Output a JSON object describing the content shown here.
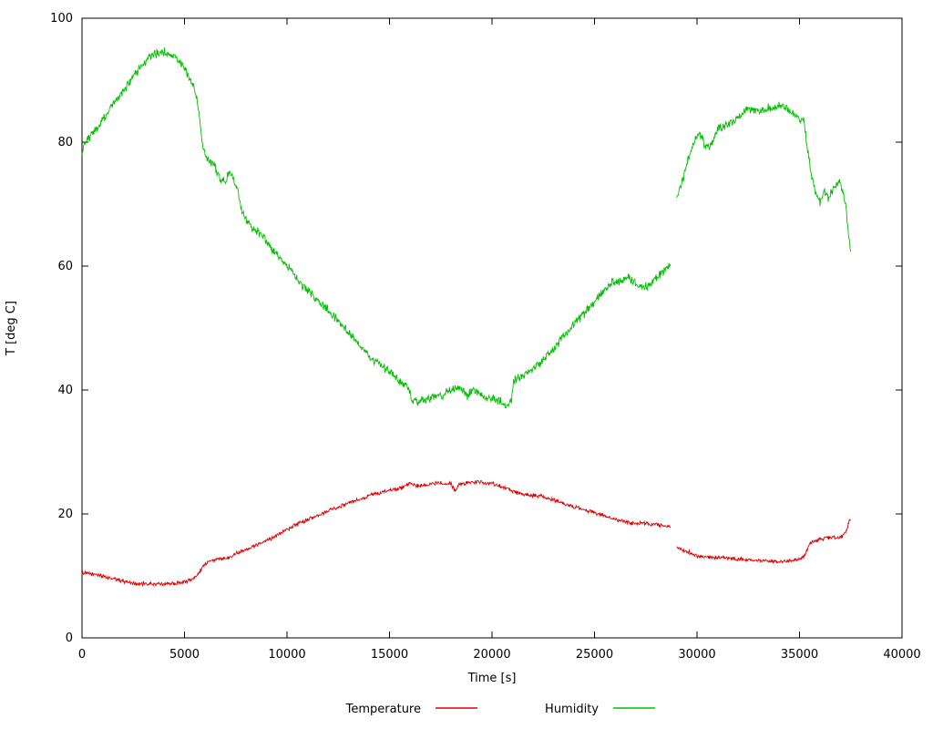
{
  "chart_data": {
    "type": "line",
    "title": "",
    "xlabel": "Time [s]",
    "ylabel": "T [deg C]",
    "xlim": [
      0,
      40000
    ],
    "ylim": [
      0,
      100
    ],
    "xticks": [
      0,
      5000,
      10000,
      15000,
      20000,
      25000,
      30000,
      35000,
      40000
    ],
    "yticks": [
      0,
      20,
      40,
      60,
      80,
      100
    ],
    "grid": false,
    "legend_position": "bottom-center",
    "background": "#ffffff",
    "frame_color": "#000000",
    "series": [
      {
        "name": "Temperature",
        "color": "#e00000",
        "noise_amplitude": 0.4,
        "segments": [
          [
            [
              0,
              10.5
            ],
            [
              400,
              10.3
            ],
            [
              800,
              10.2
            ],
            [
              1200,
              9.8
            ],
            [
              1600,
              9.5
            ],
            [
              2000,
              9.2
            ],
            [
              2400,
              8.9
            ],
            [
              2800,
              8.7
            ],
            [
              3400,
              8.7
            ],
            [
              4000,
              8.7
            ],
            [
              4600,
              8.8
            ],
            [
              5000,
              9.0
            ],
            [
              5400,
              9.5
            ],
            [
              5700,
              10.5
            ],
            [
              5900,
              11.5
            ],
            [
              6100,
              12.2
            ],
            [
              6400,
              12.5
            ],
            [
              6800,
              12.8
            ],
            [
              7200,
              13.0
            ],
            [
              7600,
              13.8
            ],
            [
              8000,
              14.3
            ],
            [
              8400,
              14.8
            ],
            [
              8800,
              15.5
            ],
            [
              9200,
              16.0
            ],
            [
              9600,
              16.8
            ],
            [
              10000,
              17.5
            ],
            [
              10400,
              18.2
            ],
            [
              10800,
              18.8
            ],
            [
              11200,
              19.3
            ],
            [
              11600,
              19.8
            ],
            [
              12000,
              20.5
            ],
            [
              12400,
              21.0
            ],
            [
              12800,
              21.5
            ],
            [
              13200,
              22.0
            ],
            [
              13600,
              22.5
            ],
            [
              14000,
              23.0
            ],
            [
              14400,
              23.3
            ],
            [
              14800,
              23.6
            ],
            [
              15200,
              23.9
            ],
            [
              15600,
              24.2
            ],
            [
              16000,
              24.8
            ],
            [
              16400,
              24.5
            ],
            [
              16800,
              24.7
            ],
            [
              17200,
              24.9
            ],
            [
              17600,
              25.0
            ],
            [
              18000,
              24.8
            ],
            [
              18200,
              23.8
            ],
            [
              18400,
              24.8
            ],
            [
              18800,
              25.0
            ],
            [
              19200,
              25.2
            ],
            [
              19600,
              25.0
            ],
            [
              20000,
              24.9
            ],
            [
              20400,
              24.5
            ],
            [
              20800,
              24.0
            ],
            [
              21200,
              23.4
            ],
            [
              21600,
              23.1
            ],
            [
              22000,
              23.0
            ],
            [
              22400,
              22.9
            ],
            [
              22800,
              22.4
            ],
            [
              23200,
              22.0
            ],
            [
              23600,
              21.6
            ],
            [
              24000,
              21.2
            ],
            [
              24400,
              20.8
            ],
            [
              24800,
              20.4
            ],
            [
              25200,
              20.0
            ],
            [
              25600,
              19.5
            ],
            [
              26000,
              19.2
            ],
            [
              26400,
              18.8
            ],
            [
              26800,
              18.5
            ],
            [
              27200,
              18.5
            ],
            [
              27600,
              18.4
            ],
            [
              28000,
              18.3
            ],
            [
              28400,
              18.1
            ],
            [
              28700,
              17.9
            ]
          ],
          [
            [
              29000,
              14.6
            ],
            [
              29300,
              14.2
            ],
            [
              29600,
              13.8
            ],
            [
              30000,
              13.2
            ],
            [
              30400,
              13.0
            ],
            [
              30800,
              13.0
            ],
            [
              31200,
              12.9
            ],
            [
              31600,
              12.8
            ],
            [
              32000,
              12.7
            ],
            [
              32400,
              12.6
            ],
            [
              32800,
              12.5
            ],
            [
              33200,
              12.5
            ],
            [
              33600,
              12.4
            ],
            [
              34000,
              12.3
            ],
            [
              34400,
              12.4
            ],
            [
              34800,
              12.6
            ],
            [
              35100,
              12.8
            ],
            [
              35300,
              13.5
            ],
            [
              35500,
              15.3
            ],
            [
              35700,
              15.6
            ],
            [
              36000,
              15.9
            ],
            [
              36300,
              16.1
            ],
            [
              36600,
              16.2
            ],
            [
              36900,
              16.1
            ],
            [
              37100,
              16.5
            ],
            [
              37250,
              17.0
            ],
            [
              37350,
              18.0
            ],
            [
              37450,
              19.0
            ],
            [
              37500,
              19.3
            ]
          ]
        ]
      },
      {
        "name": "Humidity",
        "color": "#00c000",
        "noise_amplitude": 0.9,
        "segments": [
          [
            [
              0,
              78
            ],
            [
              150,
              80
            ],
            [
              400,
              81
            ],
            [
              700,
              82
            ],
            [
              1000,
              83.5
            ],
            [
              1300,
              85
            ],
            [
              1600,
              86.5
            ],
            [
              2000,
              88
            ],
            [
              2400,
              90
            ],
            [
              2800,
              92
            ],
            [
              3200,
              93.5
            ],
            [
              3600,
              94.3
            ],
            [
              4000,
              94.5
            ],
            [
              4300,
              94.3
            ],
            [
              4600,
              93.5
            ],
            [
              4900,
              92.5
            ],
            [
              5200,
              90.5
            ],
            [
              5500,
              88.5
            ],
            [
              5700,
              85
            ],
            [
              5850,
              80
            ],
            [
              6000,
              78
            ],
            [
              6200,
              77
            ],
            [
              6400,
              76.5
            ],
            [
              6600,
              75
            ],
            [
              6800,
              74
            ],
            [
              7000,
              73.5
            ],
            [
              7200,
              75.5
            ],
            [
              7400,
              74
            ],
            [
              7600,
              72
            ],
            [
              7800,
              69
            ],
            [
              8000,
              67.5
            ],
            [
              8300,
              66
            ],
            [
              8600,
              65.5
            ],
            [
              8900,
              64.5
            ],
            [
              9200,
              63
            ],
            [
              9500,
              62
            ],
            [
              9800,
              61
            ],
            [
              10100,
              59.5
            ],
            [
              10400,
              58.5
            ],
            [
              10700,
              57
            ],
            [
              11000,
              56
            ],
            [
              11300,
              55
            ],
            [
              11600,
              54
            ],
            [
              12000,
              53
            ],
            [
              12400,
              51.5
            ],
            [
              12800,
              50
            ],
            [
              13200,
              48.5
            ],
            [
              13600,
              47
            ],
            [
              14000,
              45.5
            ],
            [
              14400,
              44.5
            ],
            [
              14800,
              43.5
            ],
            [
              15200,
              42.5
            ],
            [
              15600,
              41
            ],
            [
              15900,
              40.5
            ],
            [
              16100,
              38.5
            ],
            [
              16400,
              38
            ],
            [
              16700,
              38.5
            ],
            [
              17000,
              38.5
            ],
            [
              17300,
              39.5
            ],
            [
              17600,
              39
            ],
            [
              17900,
              40
            ],
            [
              18200,
              40.5
            ],
            [
              18500,
              40
            ],
            [
              18800,
              39
            ],
            [
              19100,
              40
            ],
            [
              19400,
              39.5
            ],
            [
              19700,
              38.5
            ],
            [
              20000,
              39
            ],
            [
              20300,
              38.5
            ],
            [
              20600,
              38
            ],
            [
              20800,
              37
            ],
            [
              20950,
              38
            ],
            [
              21050,
              41.5
            ],
            [
              21300,
              42
            ],
            [
              21600,
              42.5
            ],
            [
              22000,
              43.5
            ],
            [
              22400,
              44.5
            ],
            [
              22800,
              46
            ],
            [
              23200,
              47.5
            ],
            [
              23600,
              49
            ],
            [
              24000,
              50.5
            ],
            [
              24400,
              52
            ],
            [
              24800,
              53.5
            ],
            [
              25200,
              55
            ],
            [
              25600,
              56.5
            ],
            [
              25900,
              57.5
            ],
            [
              26200,
              57.5
            ],
            [
              26500,
              58
            ],
            [
              26800,
              58
            ],
            [
              27100,
              57
            ],
            [
              27400,
              56.5
            ],
            [
              27700,
              57
            ],
            [
              28000,
              58
            ],
            [
              28300,
              59
            ],
            [
              28600,
              60
            ],
            [
              28700,
              60.5
            ]
          ],
          [
            [
              29000,
              71
            ],
            [
              29200,
              73
            ],
            [
              29400,
              75
            ],
            [
              29600,
              77.5
            ],
            [
              29800,
              79.5
            ],
            [
              30000,
              81
            ],
            [
              30200,
              81
            ],
            [
              30400,
              79.5
            ],
            [
              30600,
              79
            ],
            [
              30800,
              80
            ],
            [
              31000,
              82
            ],
            [
              31300,
              82.5
            ],
            [
              31600,
              83
            ],
            [
              32000,
              84
            ],
            [
              32300,
              85
            ],
            [
              32600,
              85.5
            ],
            [
              32900,
              85
            ],
            [
              33200,
              85
            ],
            [
              33500,
              85.5
            ],
            [
              33800,
              85.5
            ],
            [
              34100,
              86
            ],
            [
              34400,
              85.5
            ],
            [
              34700,
              84.5
            ],
            [
              35000,
              84
            ],
            [
              35200,
              83.5
            ],
            [
              35400,
              79
            ],
            [
              35600,
              74
            ],
            [
              35800,
              72
            ],
            [
              36000,
              70
            ],
            [
              36200,
              72.5
            ],
            [
              36400,
              71
            ],
            [
              36600,
              72
            ],
            [
              36800,
              73
            ],
            [
              37000,
              73.5
            ],
            [
              37100,
              72
            ],
            [
              37250,
              70
            ],
            [
              37400,
              65
            ],
            [
              37500,
              62
            ]
          ]
        ]
      }
    ]
  }
}
